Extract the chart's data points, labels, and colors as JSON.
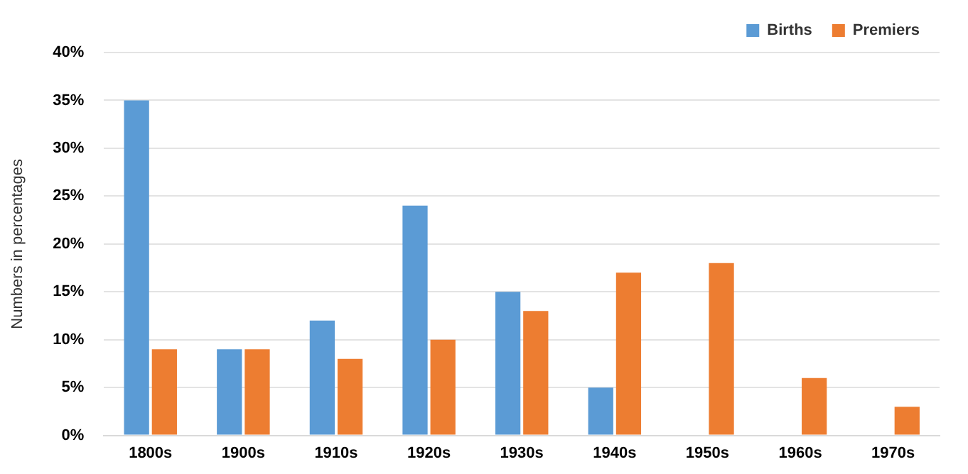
{
  "chart_data": {
    "type": "bar",
    "ylabel": "Numbers in percentages",
    "categories": [
      "1800s",
      "1900s",
      "1910s",
      "1920s",
      "1930s",
      "1940s",
      "1950s",
      "1960s",
      "1970s"
    ],
    "series": [
      {
        "name": "Births",
        "color": "#5b9bd5",
        "values": [
          35,
          9,
          12,
          24,
          15,
          5,
          0,
          0,
          0
        ]
      },
      {
        "name": "Premiers",
        "color": "#ed7d31",
        "values": [
          9,
          9,
          8,
          10,
          13,
          17,
          18,
          6,
          3
        ]
      }
    ],
    "ylim": [
      0,
      40
    ],
    "yticks": [
      {
        "value": 0,
        "label": "0%"
      },
      {
        "value": 5,
        "label": "5%"
      },
      {
        "value": 10,
        "label": "10%"
      },
      {
        "value": 15,
        "label": "15%"
      },
      {
        "value": 20,
        "label": "20%"
      },
      {
        "value": 25,
        "label": "25%"
      },
      {
        "value": 30,
        "label": "30%"
      },
      {
        "value": 35,
        "label": "35%"
      },
      {
        "value": 40,
        "label": "40%"
      }
    ],
    "grid": "y",
    "legend": "top right"
  }
}
